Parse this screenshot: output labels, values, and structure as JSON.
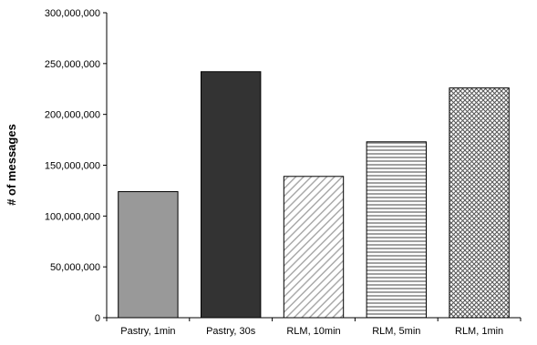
{
  "chart_data": {
    "type": "bar",
    "title": "",
    "xlabel": "",
    "ylabel": "# of messages",
    "ylim": [
      0,
      300000000
    ],
    "yticks": [
      0,
      50000000,
      100000000,
      150000000,
      200000000,
      250000000,
      300000000
    ],
    "ytick_labels": [
      "0",
      "50,000,000",
      "100,000,000",
      "150,000,000",
      "200,000,000",
      "250,000,000",
      "300,000,000"
    ],
    "categories": [
      "Pastry, 1min",
      "Pastry, 30s",
      "RLM, 10min",
      "RLM, 5min",
      "RLM, 1min"
    ],
    "values": [
      124000000,
      242000000,
      139000000,
      173000000,
      226000000
    ],
    "bar_fills": [
      "solid-gray",
      "solid-dark",
      "diagonal-hatch",
      "horizontal-lines",
      "crosshatch"
    ],
    "colors": {
      "gray": "#999999",
      "dark": "#333333",
      "hatch": "#aaaaaa",
      "lines": "#888888",
      "cross": "#555555",
      "outline": "#000000"
    },
    "grid": false,
    "legend": "none"
  }
}
